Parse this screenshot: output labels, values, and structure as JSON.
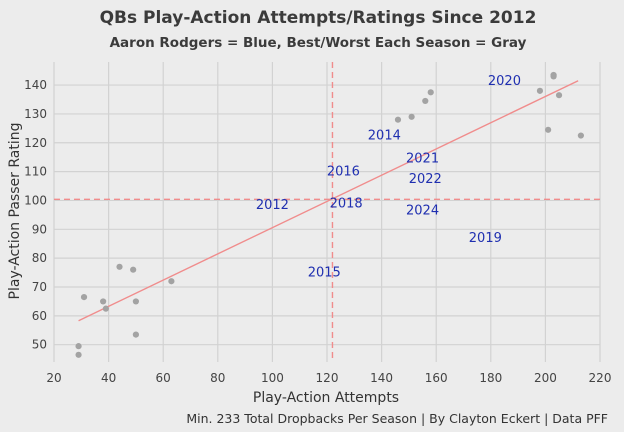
{
  "chart_data": {
    "type": "scatter",
    "title": "QBs Play-Action Attempts/Ratings Since 2012",
    "subtitle": "Aaron Rodgers = Blue, Best/Worst Each Season = Gray",
    "xlabel": "Play-Action Attempts",
    "ylabel": "Play-Action Passer Rating",
    "caption": "Min. 233 Total Dropbacks Per Season | By Clayton Eckert | Data PFF",
    "xlim": [
      20,
      220
    ],
    "ylim": [
      44,
      148
    ],
    "xticks": [
      "20",
      "40",
      "60",
      "80",
      "100",
      "120",
      "140",
      "160",
      "180",
      "200",
      "220"
    ],
    "yticks": [
      "50",
      "60",
      "70",
      "80",
      "90",
      "100",
      "110",
      "120",
      "130",
      "140"
    ],
    "grid": true,
    "reference_lines": {
      "x": 122,
      "y": 100.4
    },
    "trendline": {
      "x1": 29,
      "y1": 58.3,
      "x2": 212,
      "y2": 141.5
    },
    "rodgers_labels": [
      {
        "text": "2012",
        "x": 100,
        "y": 98.5
      },
      {
        "text": "2014",
        "x": 141,
        "y": 122.5
      },
      {
        "text": "2015",
        "x": 119,
        "y": 75
      },
      {
        "text": "2016",
        "x": 126,
        "y": 110
      },
      {
        "text": "2018",
        "x": 127,
        "y": 99
      },
      {
        "text": "2019",
        "x": 178,
        "y": 87
      },
      {
        "text": "2020",
        "x": 185,
        "y": 141.5
      },
      {
        "text": "2021",
        "x": 155,
        "y": 114.5
      },
      {
        "text": "2022",
        "x": 156,
        "y": 107.5
      },
      {
        "text": "2024",
        "x": 155,
        "y": 96.5
      }
    ],
    "gray_points": [
      {
        "x": 29,
        "y": 49.5
      },
      {
        "x": 29,
        "y": 46.5
      },
      {
        "x": 31,
        "y": 66.5
      },
      {
        "x": 38,
        "y": 65
      },
      {
        "x": 39,
        "y": 62.5
      },
      {
        "x": 44,
        "y": 77
      },
      {
        "x": 49,
        "y": 76
      },
      {
        "x": 50,
        "y": 65
      },
      {
        "x": 50,
        "y": 53.5
      },
      {
        "x": 63,
        "y": 72
      },
      {
        "x": 146,
        "y": 128
      },
      {
        "x": 151,
        "y": 129
      },
      {
        "x": 156,
        "y": 134.5
      },
      {
        "x": 158,
        "y": 137.5
      },
      {
        "x": 198,
        "y": 138
      },
      {
        "x": 201,
        "y": 124.5
      },
      {
        "x": 203,
        "y": 143.5
      },
      {
        "x": 203,
        "y": 143
      },
      {
        "x": 205,
        "y": 136.5
      },
      {
        "x": 213,
        "y": 122.5
      }
    ],
    "colors": {
      "background": "#ececec",
      "grid": "#d2d2d2",
      "gray_point": "#a3a3a3",
      "rodgers_label": "#1f2fb0",
      "trendline": "#f08c8c",
      "reference_line": "#f08c8c"
    }
  }
}
